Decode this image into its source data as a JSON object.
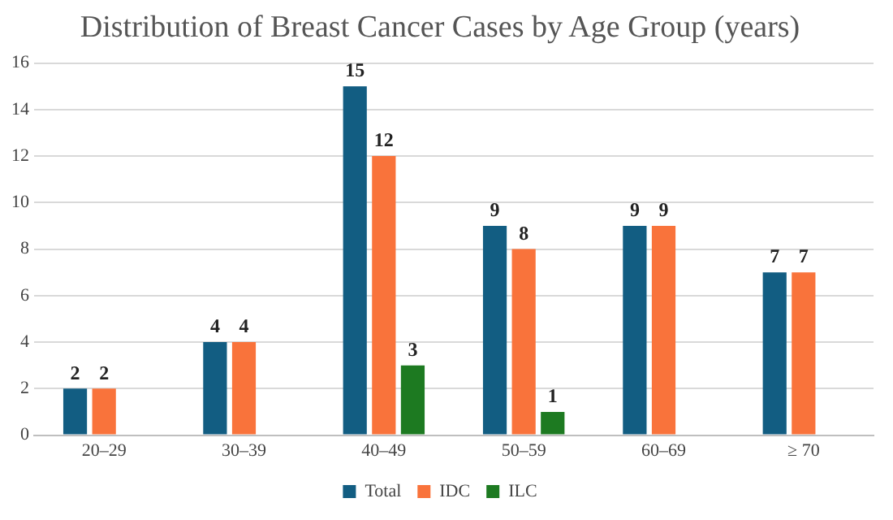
{
  "chart_data": {
    "type": "bar",
    "title": "Distribution of Breast Cancer Cases by Age Group (years)",
    "categories": [
      "20–29",
      "30–39",
      "40–49",
      "50–59",
      "60–69",
      "≥ 70"
    ],
    "series": [
      {
        "name": "Total",
        "color": "#125d82",
        "values": [
          2,
          4,
          15,
          9,
          9,
          7
        ]
      },
      {
        "name": "IDC",
        "color": "#f9733b",
        "values": [
          2,
          4,
          12,
          8,
          9,
          7
        ]
      },
      {
        "name": "ILC",
        "color": "#1d7a21",
        "values": [
          null,
          null,
          3,
          1,
          null,
          null
        ]
      }
    ],
    "ylim": [
      0,
      16
    ],
    "yticks": [
      0,
      2,
      4,
      6,
      8,
      10,
      12,
      14,
      16
    ],
    "grid": "y",
    "legend": "bottom",
    "data_labels": true
  }
}
